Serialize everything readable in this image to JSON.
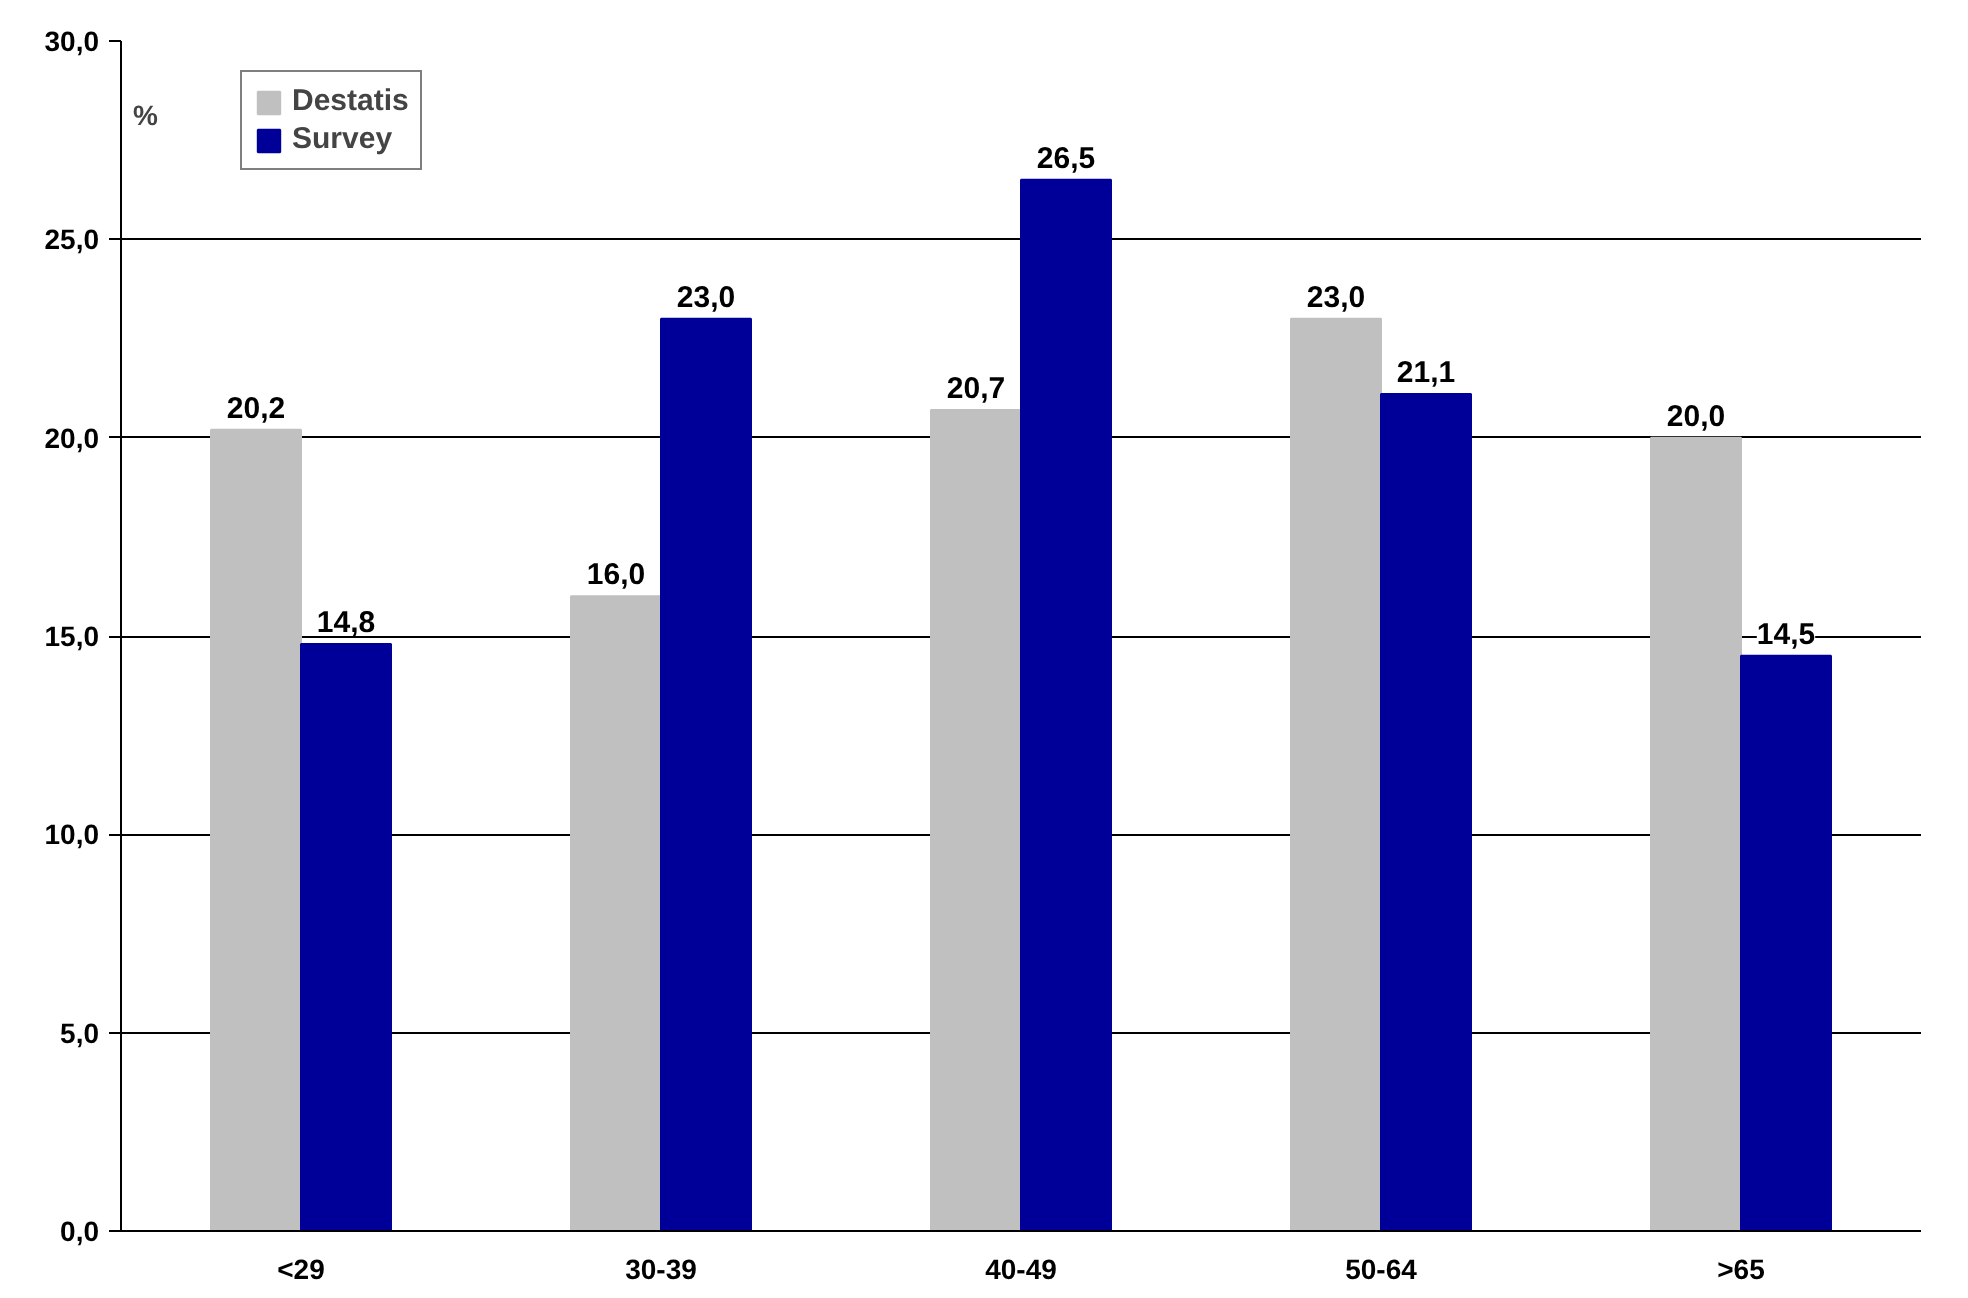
{
  "chart_data": {
    "type": "bar",
    "ylabel": "%",
    "categories": [
      "<29",
      "30-39",
      "40-49",
      "50-64",
      ">65"
    ],
    "series": [
      {
        "name": "Destatis",
        "color": "#c0c0c0",
        "values": [
          20.2,
          16.0,
          20.7,
          23.0,
          20.0
        ],
        "value_labels": [
          "20,2",
          "16,0",
          "20,7",
          "23,0",
          "20,0"
        ]
      },
      {
        "name": "Survey",
        "color": "#000099",
        "values": [
          14.8,
          23.0,
          26.5,
          21.1,
          14.5
        ],
        "value_labels": [
          "14,8",
          "23,0",
          "26,5",
          "21,1",
          "14,5"
        ]
      }
    ],
    "ylim": [
      0,
      30
    ],
    "yticks": [
      {
        "value": 0,
        "label": "0,0"
      },
      {
        "value": 5,
        "label": "5,0"
      },
      {
        "value": 10,
        "label": "10,0"
      },
      {
        "value": 15,
        "label": "15,0"
      },
      {
        "value": 20,
        "label": "20,0"
      },
      {
        "value": 25,
        "label": "25,0"
      },
      {
        "value": 30,
        "label": "30,0"
      }
    ],
    "grid": "y",
    "legend": "top left"
  }
}
